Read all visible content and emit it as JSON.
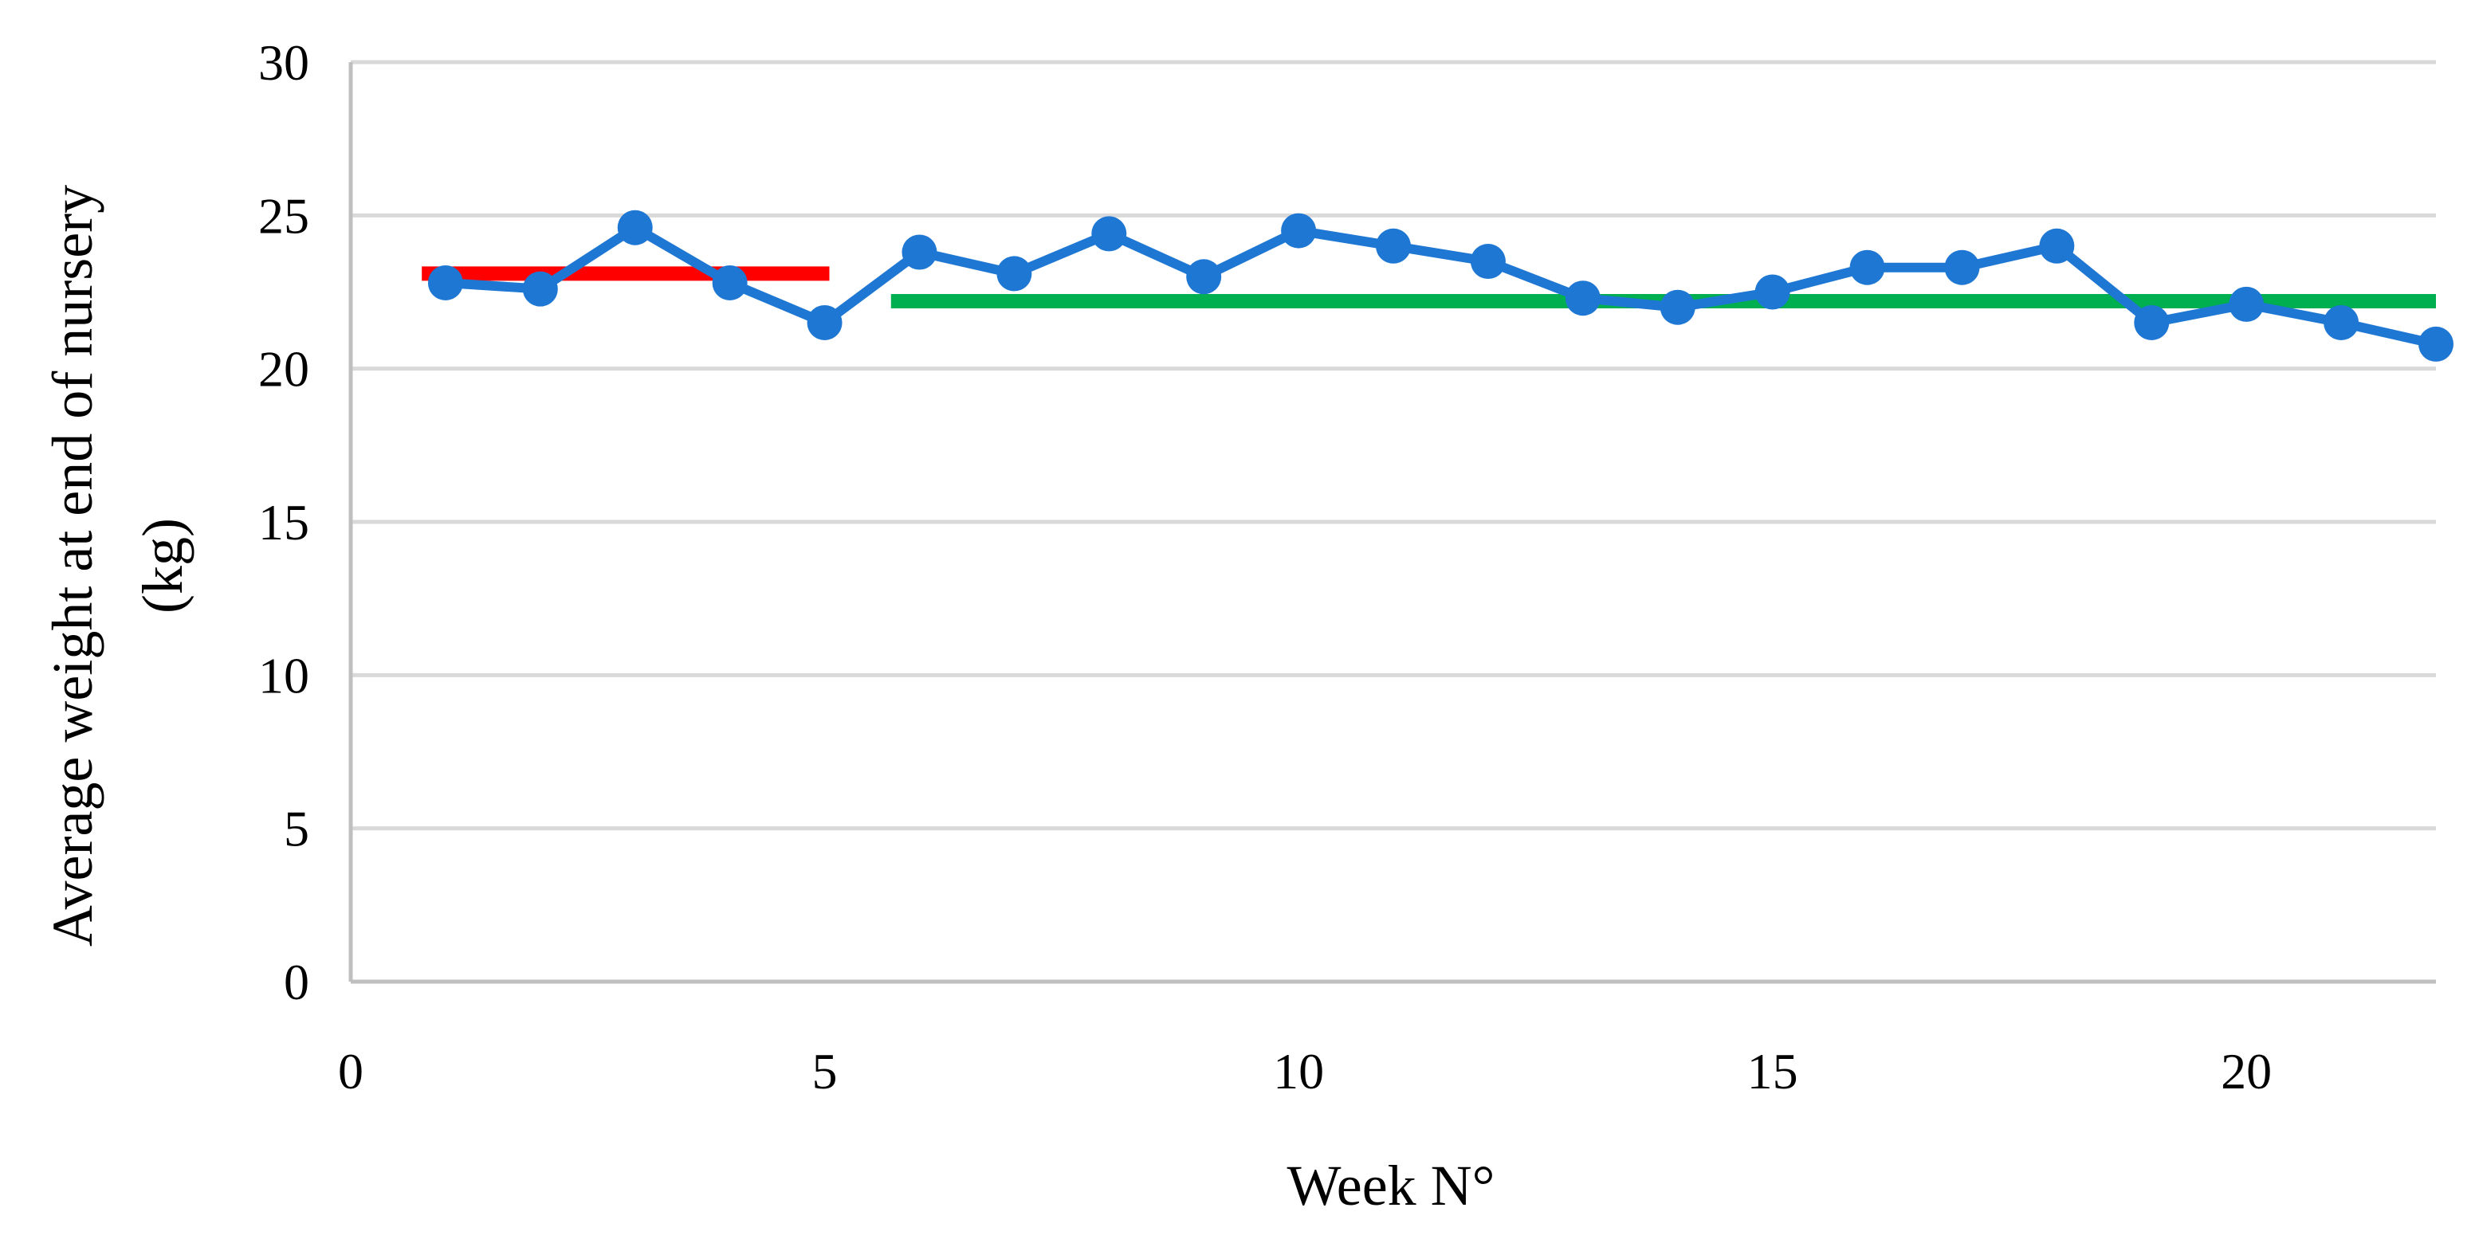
{
  "chart_data": {
    "type": "line",
    "title": "",
    "xlabel": "Week N°",
    "ylabel_lines": [
      "Average weight at end of nursery",
      "(kg)"
    ],
    "xlim": [
      0,
      22
    ],
    "ylim": [
      0,
      30
    ],
    "x_ticks": [
      0,
      5,
      10,
      15,
      20
    ],
    "y_ticks": [
      0,
      5,
      10,
      15,
      20,
      25,
      30
    ],
    "grid": "horizontal",
    "legend": "none",
    "series": [
      {
        "color": "#1f77d4",
        "marker": "circle",
        "x": [
          1,
          2,
          3,
          4,
          5,
          6,
          7,
          8,
          9,
          10,
          11,
          12,
          13,
          14,
          15,
          16,
          17,
          18,
          19,
          20,
          21,
          22
        ],
        "y": [
          22.8,
          22.6,
          24.6,
          22.8,
          21.5,
          23.8,
          23.1,
          24.4,
          23.0,
          24.5,
          24.0,
          23.5,
          22.3,
          22.0,
          22.5,
          23.3,
          23.3,
          24.0,
          21.5,
          22.1,
          21.5,
          20.8
        ]
      }
    ],
    "reference_lines": [
      {
        "color": "#ff0000",
        "y": 23.1,
        "x_start": 0.75,
        "x_end": 5.05
      },
      {
        "color": "#00b050",
        "y": 22.2,
        "x_start": 5.7,
        "x_end": 22.0
      }
    ]
  }
}
